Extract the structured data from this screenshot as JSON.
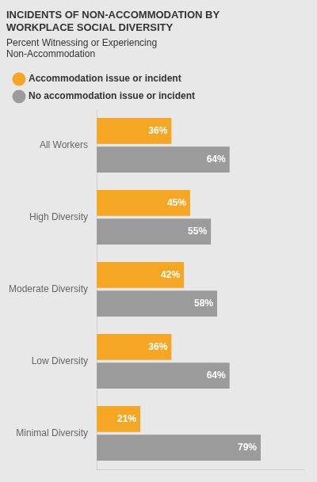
{
  "chart_data": {
    "type": "bar",
    "orientation": "horizontal",
    "title": [
      "INCIDENTS OF NON-ACCOMMODATION BY",
      "WORKPLACE SOCIAL DIVERSITY"
    ],
    "subtitle": [
      "Percent Witnessing or Experiencing",
      "Non-Accommodation"
    ],
    "categories": [
      "All Workers",
      "High Diversity",
      "Moderate Diversity",
      "Low Diversity",
      "Minimal Diversity"
    ],
    "series": [
      {
        "name": "Accommodation issue or incident",
        "color": "#F5A623",
        "values": [
          36,
          45,
          42,
          36,
          21
        ],
        "value_labels": [
          "36%",
          "45%",
          "42%",
          "36%",
          "21%"
        ]
      },
      {
        "name": "No accommodation issue or incident",
        "color": "#9B9B9B",
        "values": [
          64,
          55,
          58,
          64,
          79
        ],
        "value_labels": [
          "64%",
          "55%",
          "58%",
          "64%",
          "79%"
        ]
      }
    ],
    "xlim": [
      0,
      100
    ],
    "grid": false,
    "legend": "top left",
    "data_labels": true,
    "tick_labels": "y"
  }
}
